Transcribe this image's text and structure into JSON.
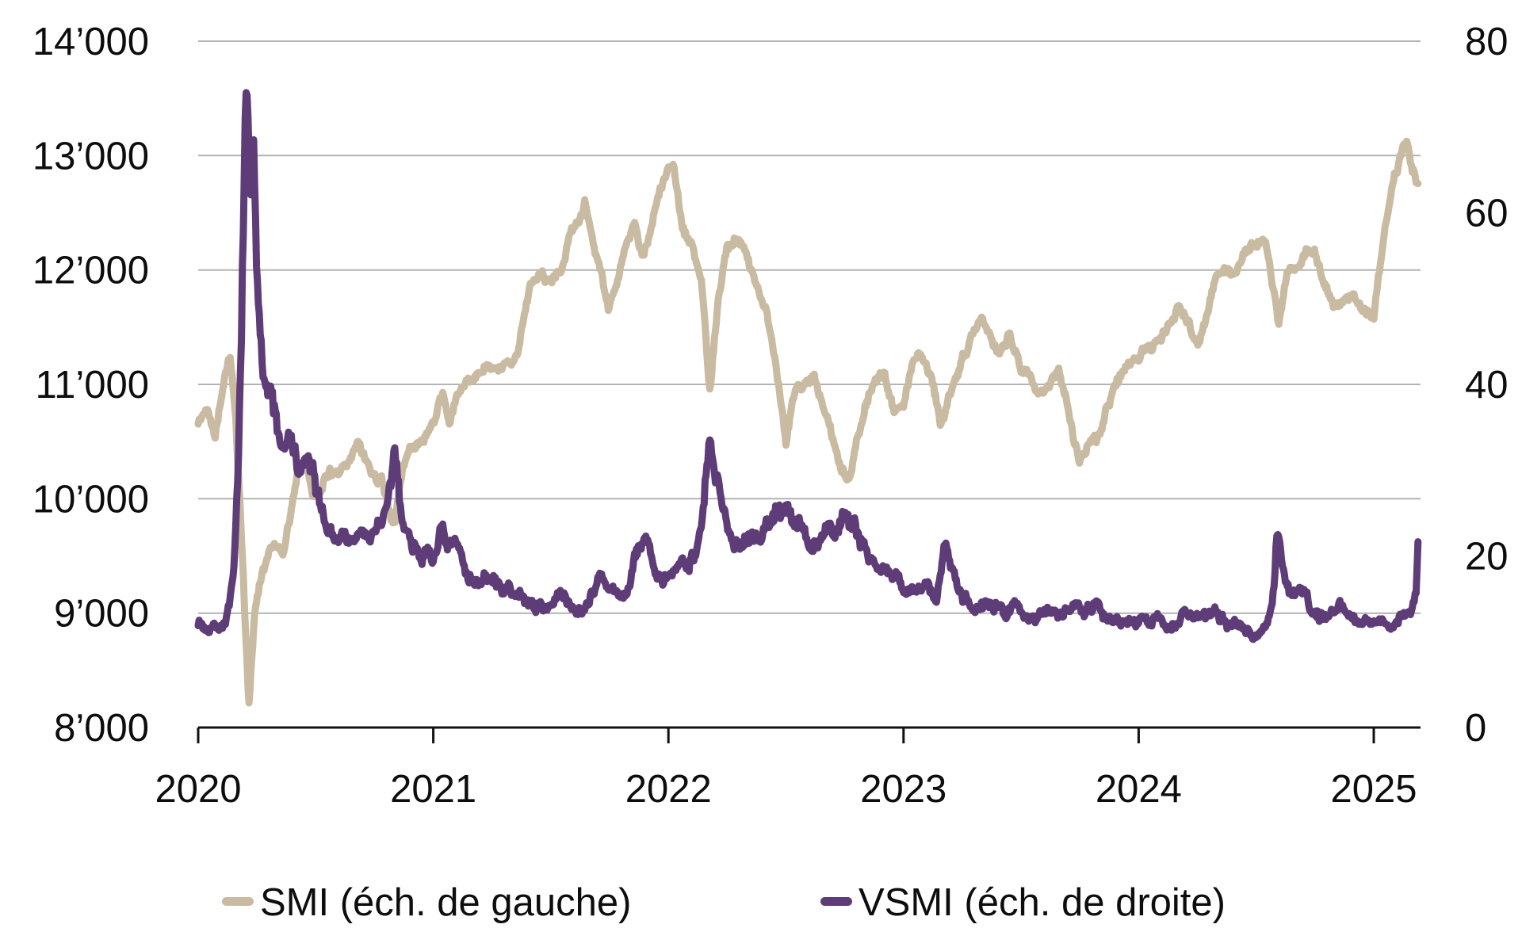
{
  "chart_data": {
    "type": "line",
    "title": "",
    "grid": "horizontal",
    "legend_position": "bottom",
    "x": {
      "labels": [
        "2020",
        "2021",
        "2022",
        "2023",
        "2024",
        "2025"
      ],
      "values": [
        2020,
        2021,
        2022,
        2023,
        2024,
        2025
      ],
      "range": [
        2020,
        2025.2
      ]
    },
    "y_left": {
      "labels": [
        "14’000",
        "13’000",
        "12’000",
        "11’000",
        "10’000",
        "9’000",
        "8’000"
      ],
      "values": [
        14000,
        13000,
        12000,
        11000,
        10000,
        9000,
        8000
      ],
      "range": [
        8000,
        14000
      ]
    },
    "y_right": {
      "labels": [
        "80",
        "60",
        "40",
        "20",
        "0"
      ],
      "values": [
        80,
        60,
        40,
        20,
        0
      ],
      "range": [
        0,
        80
      ]
    },
    "series": [
      {
        "name": "SMI (éch. de gauche)",
        "axis": "left",
        "color": "#c9baa2",
        "keypoints": [
          [
            2020.0,
            10650
          ],
          [
            2020.04,
            10800
          ],
          [
            2020.07,
            10580
          ],
          [
            2020.1,
            10950
          ],
          [
            2020.135,
            11260
          ],
          [
            2020.16,
            10700
          ],
          [
            2020.19,
            9400
          ],
          [
            2020.215,
            8170
          ],
          [
            2020.24,
            9000
          ],
          [
            2020.27,
            9350
          ],
          [
            2020.3,
            9550
          ],
          [
            2020.33,
            9650
          ],
          [
            2020.36,
            9500
          ],
          [
            2020.4,
            9900
          ],
          [
            2020.43,
            10250
          ],
          [
            2020.46,
            10320
          ],
          [
            2020.49,
            10030
          ],
          [
            2020.52,
            10140
          ],
          [
            2020.56,
            10280
          ],
          [
            2020.6,
            10200
          ],
          [
            2020.64,
            10300
          ],
          [
            2020.68,
            10480
          ],
          [
            2020.71,
            10380
          ],
          [
            2020.74,
            10250
          ],
          [
            2020.78,
            10180
          ],
          [
            2020.81,
            9900
          ],
          [
            2020.835,
            9770
          ],
          [
            2020.87,
            10250
          ],
          [
            2020.9,
            10460
          ],
          [
            2020.93,
            10430
          ],
          [
            2020.96,
            10550
          ],
          [
            2021.0,
            10700
          ],
          [
            2021.04,
            10870
          ],
          [
            2021.07,
            10650
          ],
          [
            2021.1,
            10880
          ],
          [
            2021.15,
            10980
          ],
          [
            2021.19,
            11100
          ],
          [
            2021.23,
            11130
          ],
          [
            2021.27,
            11030
          ],
          [
            2021.32,
            11180
          ],
          [
            2021.36,
            11300
          ],
          [
            2021.41,
            11820
          ],
          [
            2021.46,
            11970
          ],
          [
            2021.5,
            11940
          ],
          [
            2021.54,
            12050
          ],
          [
            2021.58,
            12300
          ],
          [
            2021.62,
            12480
          ],
          [
            2021.645,
            12570
          ],
          [
            2021.68,
            12250
          ],
          [
            2021.71,
            12050
          ],
          [
            2021.745,
            11640
          ],
          [
            2021.78,
            11920
          ],
          [
            2021.82,
            12200
          ],
          [
            2021.86,
            12400
          ],
          [
            2021.89,
            12100
          ],
          [
            2021.92,
            12250
          ],
          [
            2021.96,
            12650
          ],
          [
            2022.0,
            12880
          ],
          [
            2022.02,
            12940
          ],
          [
            2022.06,
            12350
          ],
          [
            2022.1,
            12200
          ],
          [
            2022.14,
            11850
          ],
          [
            2022.175,
            10950
          ],
          [
            2022.21,
            11700
          ],
          [
            2022.25,
            12200
          ],
          [
            2022.29,
            12300
          ],
          [
            2022.33,
            12160
          ],
          [
            2022.38,
            11850
          ],
          [
            2022.42,
            11650
          ],
          [
            2022.46,
            11100
          ],
          [
            2022.5,
            10480
          ],
          [
            2022.54,
            10950
          ],
          [
            2022.58,
            11050
          ],
          [
            2022.62,
            11130
          ],
          [
            2022.66,
            10800
          ],
          [
            2022.7,
            10500
          ],
          [
            2022.735,
            10230
          ],
          [
            2022.77,
            10150
          ],
          [
            2022.8,
            10500
          ],
          [
            2022.84,
            10820
          ],
          [
            2022.88,
            11050
          ],
          [
            2022.92,
            11080
          ],
          [
            2022.96,
            10780
          ],
          [
            2023.0,
            10850
          ],
          [
            2023.04,
            11200
          ],
          [
            2023.08,
            11280
          ],
          [
            2023.12,
            11100
          ],
          [
            2023.16,
            10650
          ],
          [
            2023.2,
            10900
          ],
          [
            2023.25,
            11250
          ],
          [
            2023.29,
            11400
          ],
          [
            2023.33,
            11560
          ],
          [
            2023.37,
            11380
          ],
          [
            2023.41,
            11250
          ],
          [
            2023.45,
            11400
          ],
          [
            2023.5,
            11150
          ],
          [
            2023.54,
            11100
          ],
          [
            2023.58,
            10950
          ],
          [
            2023.62,
            11050
          ],
          [
            2023.66,
            11100
          ],
          [
            2023.7,
            10800
          ],
          [
            2023.745,
            10360
          ],
          [
            2023.79,
            10500
          ],
          [
            2023.83,
            10550
          ],
          [
            2023.87,
            10850
          ],
          [
            2023.91,
            11050
          ],
          [
            2023.96,
            11130
          ],
          [
            2024.0,
            11180
          ],
          [
            2024.04,
            11350
          ],
          [
            2024.08,
            11400
          ],
          [
            2024.12,
            11530
          ],
          [
            2024.17,
            11700
          ],
          [
            2024.21,
            11500
          ],
          [
            2024.25,
            11280
          ],
          [
            2024.29,
            11600
          ],
          [
            2024.33,
            11940
          ],
          [
            2024.38,
            12050
          ],
          [
            2024.42,
            11970
          ],
          [
            2024.46,
            12130
          ],
          [
            2024.5,
            12250
          ],
          [
            2024.54,
            12320
          ],
          [
            2024.58,
            11800
          ],
          [
            2024.595,
            11520
          ],
          [
            2024.63,
            11950
          ],
          [
            2024.67,
            12050
          ],
          [
            2024.71,
            12200
          ],
          [
            2024.75,
            12170
          ],
          [
            2024.79,
            11900
          ],
          [
            2024.83,
            11660
          ],
          [
            2024.87,
            11700
          ],
          [
            2024.91,
            11780
          ],
          [
            2024.95,
            11640
          ],
          [
            2025.0,
            11620
          ],
          [
            2025.04,
            12250
          ],
          [
            2025.08,
            12750
          ],
          [
            2025.115,
            13000
          ],
          [
            2025.14,
            13140
          ],
          [
            2025.165,
            12950
          ],
          [
            2025.19,
            12720
          ]
        ]
      },
      {
        "name": "VSMI (éch. de droite)",
        "axis": "right",
        "color": "#5d3c77",
        "keypoints": [
          [
            2020.0,
            12.5
          ],
          [
            2020.03,
            11.5
          ],
          [
            2020.06,
            12.5
          ],
          [
            2020.09,
            12.0
          ],
          [
            2020.12,
            13.0
          ],
          [
            2020.15,
            17.0
          ],
          [
            2020.17,
            28.0
          ],
          [
            2020.19,
            55.0
          ],
          [
            2020.205,
            73.5
          ],
          [
            2020.22,
            62.0
          ],
          [
            2020.235,
            68.0
          ],
          [
            2020.25,
            50.0
          ],
          [
            2020.28,
            43.0
          ],
          [
            2020.31,
            39.0
          ],
          [
            2020.34,
            34.0
          ],
          [
            2020.37,
            32.0
          ],
          [
            2020.4,
            33.0
          ],
          [
            2020.43,
            29.0
          ],
          [
            2020.46,
            31.0
          ],
          [
            2020.49,
            28.0
          ],
          [
            2020.52,
            25.0
          ],
          [
            2020.56,
            23.0
          ],
          [
            2020.6,
            21.5
          ],
          [
            2020.63,
            23.0
          ],
          [
            2020.66,
            21.0
          ],
          [
            2020.7,
            23.5
          ],
          [
            2020.73,
            21.0
          ],
          [
            2020.77,
            24.0
          ],
          [
            2020.81,
            26.0
          ],
          [
            2020.835,
            30.5
          ],
          [
            2020.86,
            26.0
          ],
          [
            2020.89,
            23.0
          ],
          [
            2020.93,
            21.5
          ],
          [
            2020.97,
            20.5
          ],
          [
            2021.0,
            19.5
          ],
          [
            2021.03,
            23.5
          ],
          [
            2021.06,
            20.0
          ],
          [
            2021.09,
            21.0
          ],
          [
            2021.12,
            19.0
          ],
          [
            2021.16,
            18.0
          ],
          [
            2021.2,
            17.5
          ],
          [
            2021.24,
            17.0
          ],
          [
            2021.28,
            16.5
          ],
          [
            2021.33,
            16.0
          ],
          [
            2021.37,
            15.0
          ],
          [
            2021.42,
            14.5
          ],
          [
            2021.46,
            14.0
          ],
          [
            2021.5,
            14.5
          ],
          [
            2021.54,
            15.5
          ],
          [
            2021.58,
            14.5
          ],
          [
            2021.63,
            14.0
          ],
          [
            2021.67,
            16.0
          ],
          [
            2021.71,
            17.5
          ],
          [
            2021.75,
            15.5
          ],
          [
            2021.79,
            15.0
          ],
          [
            2021.83,
            16.0
          ],
          [
            2021.875,
            21.0
          ],
          [
            2021.91,
            22.0
          ],
          [
            2021.94,
            18.5
          ],
          [
            2021.98,
            16.5
          ],
          [
            2022.02,
            17.0
          ],
          [
            2022.06,
            19.5
          ],
          [
            2022.1,
            21.0
          ],
          [
            2022.14,
            23.0
          ],
          [
            2022.175,
            33.0
          ],
          [
            2022.2,
            28.0
          ],
          [
            2022.23,
            25.0
          ],
          [
            2022.27,
            23.0
          ],
          [
            2022.31,
            22.0
          ],
          [
            2022.35,
            23.5
          ],
          [
            2022.39,
            22.0
          ],
          [
            2022.43,
            24.0
          ],
          [
            2022.47,
            25.5
          ],
          [
            2022.5,
            26.5
          ],
          [
            2022.53,
            24.0
          ],
          [
            2022.57,
            22.5
          ],
          [
            2022.61,
            21.0
          ],
          [
            2022.64,
            22.5
          ],
          [
            2022.68,
            23.5
          ],
          [
            2022.71,
            22.0
          ],
          [
            2022.745,
            25.5
          ],
          [
            2022.78,
            24.0
          ],
          [
            2022.82,
            22.5
          ],
          [
            2022.86,
            20.5
          ],
          [
            2022.9,
            19.0
          ],
          [
            2022.94,
            18.0
          ],
          [
            2022.98,
            17.0
          ],
          [
            2023.02,
            16.0
          ],
          [
            2023.06,
            15.5
          ],
          [
            2023.1,
            16.0
          ],
          [
            2023.14,
            15.0
          ],
          [
            2023.18,
            21.5
          ],
          [
            2023.21,
            19.0
          ],
          [
            2023.25,
            16.0
          ],
          [
            2023.29,
            15.0
          ],
          [
            2023.34,
            14.5
          ],
          [
            2023.38,
            14.0
          ],
          [
            2023.43,
            13.5
          ],
          [
            2023.47,
            13.8
          ],
          [
            2023.52,
            13.2
          ],
          [
            2023.56,
            13.0
          ],
          [
            2023.6,
            14.0
          ],
          [
            2023.65,
            13.5
          ],
          [
            2023.7,
            14.5
          ],
          [
            2023.75,
            15.0
          ],
          [
            2023.79,
            14.0
          ],
          [
            2023.83,
            14.5
          ],
          [
            2023.88,
            13.0
          ],
          [
            2023.92,
            12.3
          ],
          [
            2023.96,
            12.5
          ],
          [
            2024.0,
            12.3
          ],
          [
            2024.04,
            12.0
          ],
          [
            2024.08,
            12.5
          ],
          [
            2024.12,
            12.0
          ],
          [
            2024.16,
            12.8
          ],
          [
            2024.2,
            13.5
          ],
          [
            2024.25,
            13.0
          ],
          [
            2024.29,
            12.5
          ],
          [
            2024.33,
            13.0
          ],
          [
            2024.38,
            12.3
          ],
          [
            2024.42,
            12.0
          ],
          [
            2024.46,
            11.2
          ],
          [
            2024.5,
            11.0
          ],
          [
            2024.54,
            12.0
          ],
          [
            2024.575,
            16.0
          ],
          [
            2024.59,
            23.5
          ],
          [
            2024.61,
            19.0
          ],
          [
            2024.63,
            16.5
          ],
          [
            2024.66,
            15.5
          ],
          [
            2024.69,
            17.5
          ],
          [
            2024.72,
            15.0
          ],
          [
            2024.75,
            13.5
          ],
          [
            2024.79,
            13.0
          ],
          [
            2024.83,
            13.8
          ],
          [
            2024.87,
            14.5
          ],
          [
            2024.9,
            13.0
          ],
          [
            2024.94,
            12.5
          ],
          [
            2024.98,
            12.8
          ],
          [
            2025.02,
            12.3
          ],
          [
            2025.06,
            12.0
          ],
          [
            2025.1,
            12.8
          ],
          [
            2025.13,
            13.0
          ],
          [
            2025.16,
            13.5
          ],
          [
            2025.18,
            16.0
          ],
          [
            2025.19,
            23.0
          ]
        ]
      }
    ]
  },
  "legend": {
    "smi": {
      "label": "SMI (éch. de gauche)",
      "color": "#c9baa2"
    },
    "vsmi": {
      "label": "VSMI (éch. de droite)",
      "color": "#5d3c77"
    }
  },
  "colors": {
    "background": "#ffffff",
    "gridline": "#b3b3b3",
    "axis": "#111111",
    "text": "#0d0d0d",
    "smi_line": "#c9baa2",
    "vsmi_line": "#5d3c77"
  }
}
